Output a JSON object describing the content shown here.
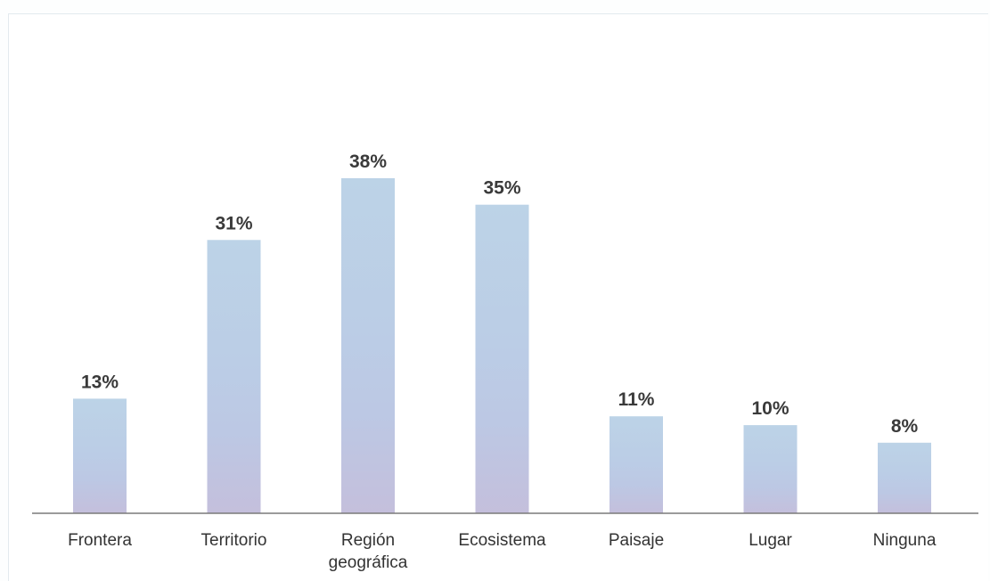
{
  "chart_data": {
    "type": "bar",
    "categories": [
      [
        "Frontera"
      ],
      [
        "Territorio"
      ],
      [
        "Región",
        "geográfica"
      ],
      [
        "Ecosistema"
      ],
      [
        "Paisaje"
      ],
      [
        "Lugar"
      ],
      [
        "Ninguna"
      ]
    ],
    "values": [
      13,
      31,
      38,
      35,
      11,
      10,
      8
    ],
    "data_labels": [
      "13%",
      "31%",
      "38%",
      "35%",
      "11%",
      "10%",
      "8%"
    ],
    "unit": "%",
    "ylim": [
      0,
      38
    ],
    "grid": false,
    "colors": {
      "bar_top": "#bdd3e6",
      "bar_mid": "#bbcbe5",
      "bar_bottom": "#c3c0dc",
      "axis": "#7a7a7a",
      "label": "#3a3a3a"
    }
  }
}
